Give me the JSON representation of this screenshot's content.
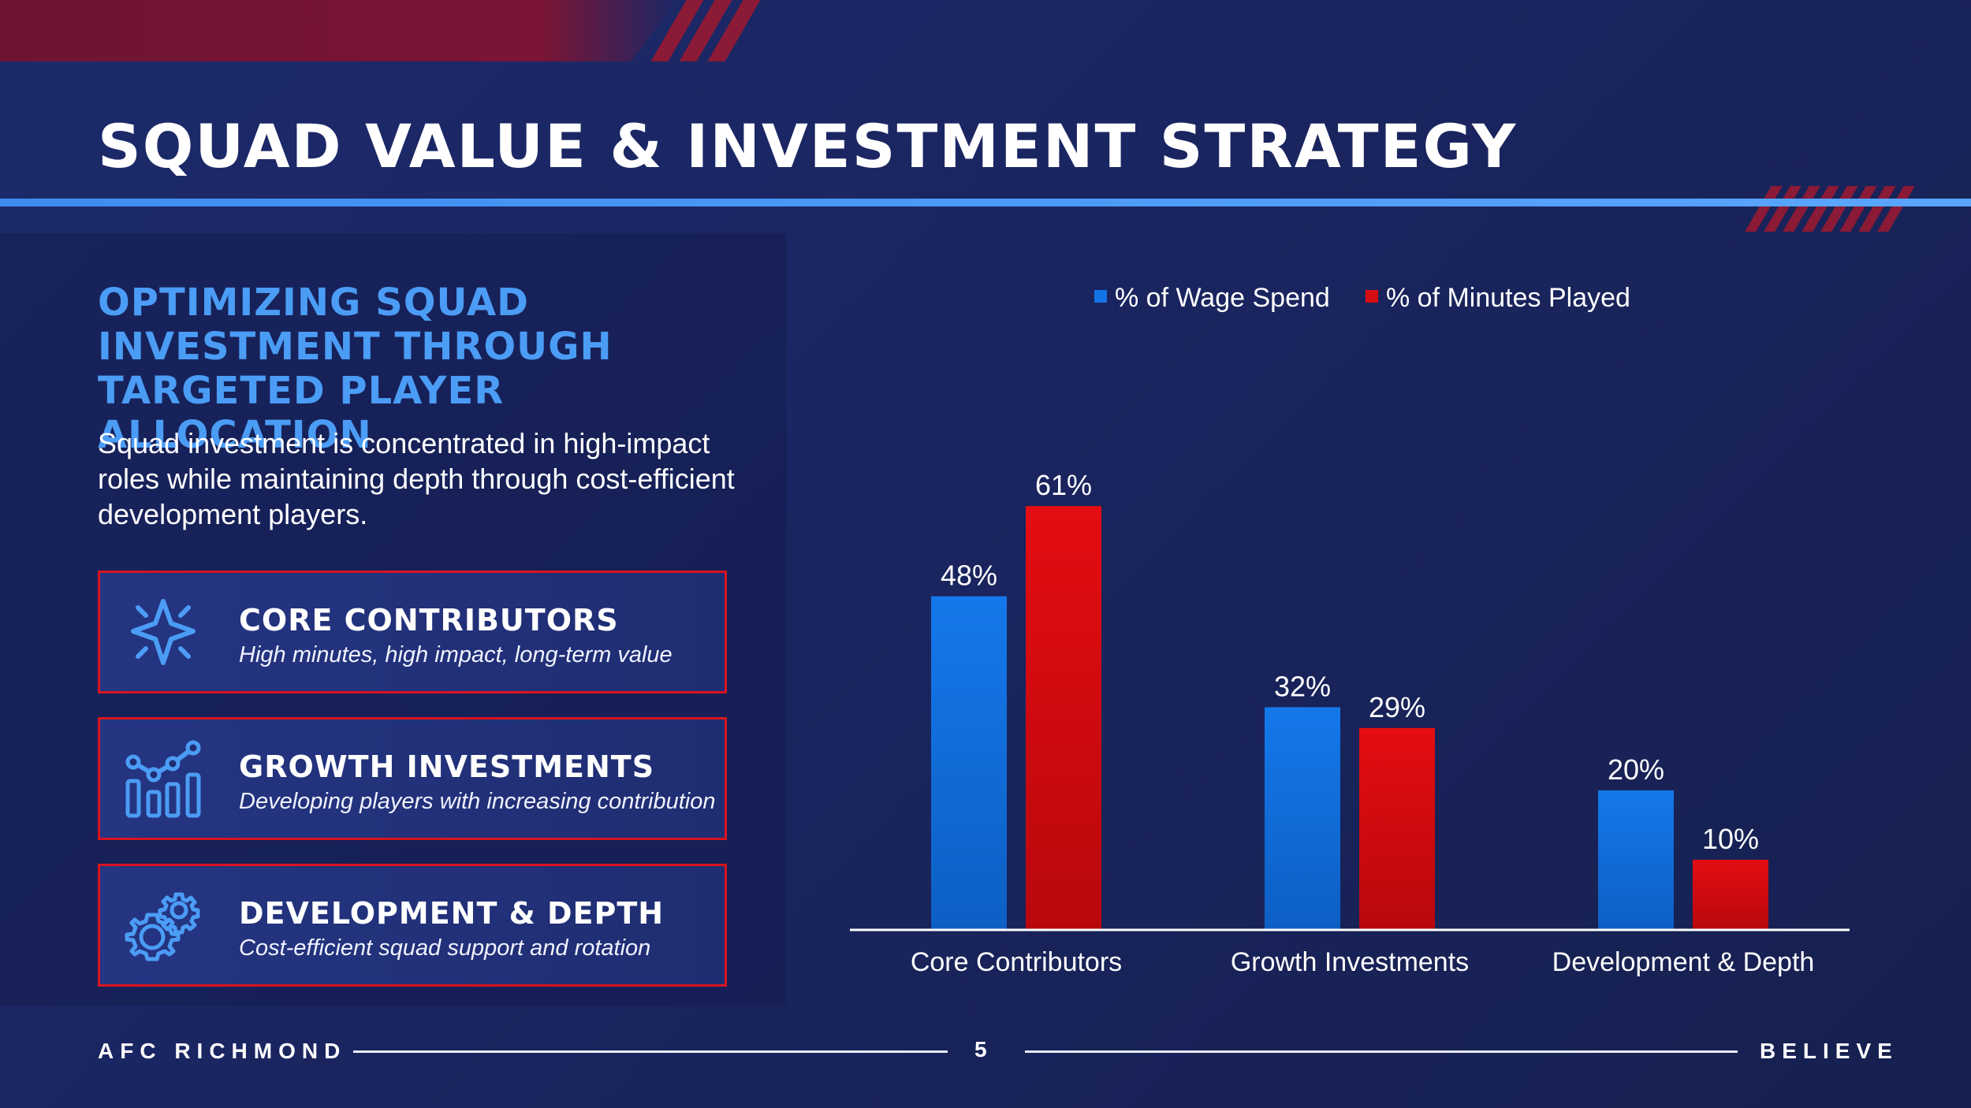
{
  "slide": {
    "title": "SQUAD VALUE & INVESTMENT STRATEGY",
    "subtitle": "OPTIMIZING SQUAD INVESTMENT THROUGH TARGETED PLAYER ALLOCATION",
    "description": "Squad investment is concentrated in high-impact roles while maintaining depth through cost-efficient development players.",
    "cards": [
      {
        "title": "CORE CONTRIBUTORS",
        "desc": "High minutes, high impact, long-term value",
        "icon": "sparkle-icon"
      },
      {
        "title": "GROWTH INVESTMENTS",
        "desc": "Developing players with increasing contribution",
        "icon": "growth-chart-icon"
      },
      {
        "title": "DEVELOPMENT & DEPTH",
        "desc": "Cost-efficient squad support and rotation",
        "icon": "gears-icon"
      }
    ],
    "footer": {
      "left": "AFC RICHMOND",
      "page": "5",
      "right": "BELIEVE"
    }
  },
  "colors": {
    "accent_blue": "#4b9cf5",
    "accent_red": "#d8141f",
    "wage_bar": "#1374e6",
    "minutes_bar": "#d60d12"
  },
  "chart_data": {
    "type": "bar",
    "categories": [
      "Core Contributors",
      "Growth Investments",
      "Development & Depth"
    ],
    "series": [
      {
        "name": "% of Wage Spend",
        "values": [
          48,
          32,
          20
        ],
        "labels": [
          "48%",
          "32%",
          "20%"
        ]
      },
      {
        "name": "% of Minutes Played",
        "values": [
          61,
          29,
          10
        ],
        "labels": [
          "61%",
          "29%",
          "10%"
        ]
      }
    ],
    "ylim": [
      0,
      100
    ],
    "legend": "top",
    "grid": false,
    "title": "",
    "xlabel": "",
    "ylabel": ""
  }
}
